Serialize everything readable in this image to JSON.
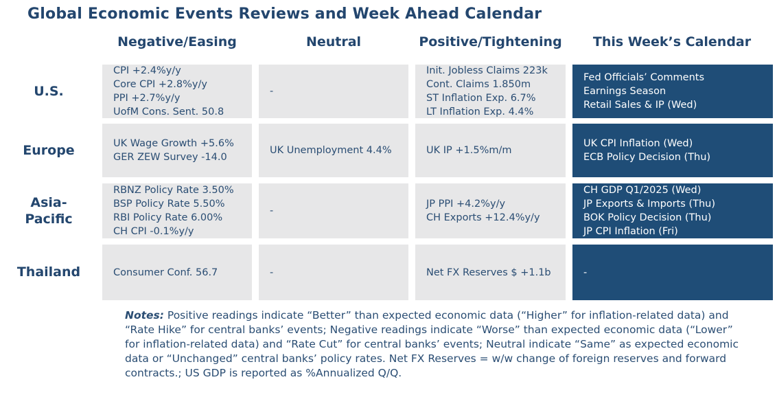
{
  "title": "Global Economic Events Reviews and Week Ahead Calendar",
  "columns": [
    "Negative/Easing",
    "Neutral",
    "Positive/Tightening",
    "This Week’s Calendar"
  ],
  "rows": [
    {
      "label": "U.S.",
      "negative": [
        "CPI +2.4%y/y",
        "Core CPI +2.8%y/y",
        "PPI +2.7%y/y",
        "UofM Cons. Sent. 50.8"
      ],
      "neutral": [
        "-"
      ],
      "positive": [
        "Init. Jobless Claims 223k",
        "Cont. Claims 1.850m",
        "ST Inflation Exp. 6.7%",
        "LT Inflation Exp. 4.4%"
      ],
      "calendar": [
        "Fed Officials’ Comments",
        "Earnings Season",
        "Retail Sales & IP (Wed)"
      ]
    },
    {
      "label": "Europe",
      "negative": [
        "UK Wage Growth +5.6%",
        "GER ZEW Survey -14.0"
      ],
      "neutral": [
        "UK Unemployment 4.4%"
      ],
      "positive": [
        "UK IP +1.5%m/m"
      ],
      "calendar": [
        "UK CPI Inflation (Wed)",
        "ECB Policy Decision (Thu)"
      ]
    },
    {
      "label": "Asia-Pacific",
      "label_lines": [
        "Asia-",
        "Pacific"
      ],
      "negative": [
        "RBNZ Policy Rate 3.50%",
        "BSP Policy Rate 5.50%",
        "RBI Policy Rate 6.00%",
        "CH CPI -0.1%y/y"
      ],
      "neutral": [
        "-"
      ],
      "positive": [
        "JP PPI +4.2%y/y",
        "CH Exports +12.4%y/y"
      ],
      "calendar": [
        "CH GDP Q1/2025 (Wed)",
        "JP Exports & Imports (Thu)",
        "BOK Policy Decision (Thu)",
        "JP CPI Inflation (Fri)"
      ]
    },
    {
      "label": "Thailand",
      "negative": [
        "Consumer Conf. 56.7"
      ],
      "neutral": [
        "-"
      ],
      "positive": [
        "Net FX Reserves $ +1.1b"
      ],
      "calendar": [
        "-"
      ]
    }
  ],
  "notes": {
    "label": "Notes:",
    "text": " Positive readings indicate “Better” than expected economic data (“Higher” for inflation-related data) and “Rate Hike” for central banks’ events; Negative readings indicate “Worse” than expected economic data (“Lower” for inflation-related data) and “Rate Cut” for central banks’ events; Neutral indicate “Same” as expected economic data or “Unchanged” central banks’ policy rates. Net FX Reserves = w/w change of foreign reserves and forward contracts.; US GDP is reported as %Annualized Q/Q."
  },
  "colors": {
    "title": "#23466e",
    "cell_light": "#e7e7e8",
    "cell_dark": "#1f4d77",
    "cell_text": "#2a4d73"
  }
}
